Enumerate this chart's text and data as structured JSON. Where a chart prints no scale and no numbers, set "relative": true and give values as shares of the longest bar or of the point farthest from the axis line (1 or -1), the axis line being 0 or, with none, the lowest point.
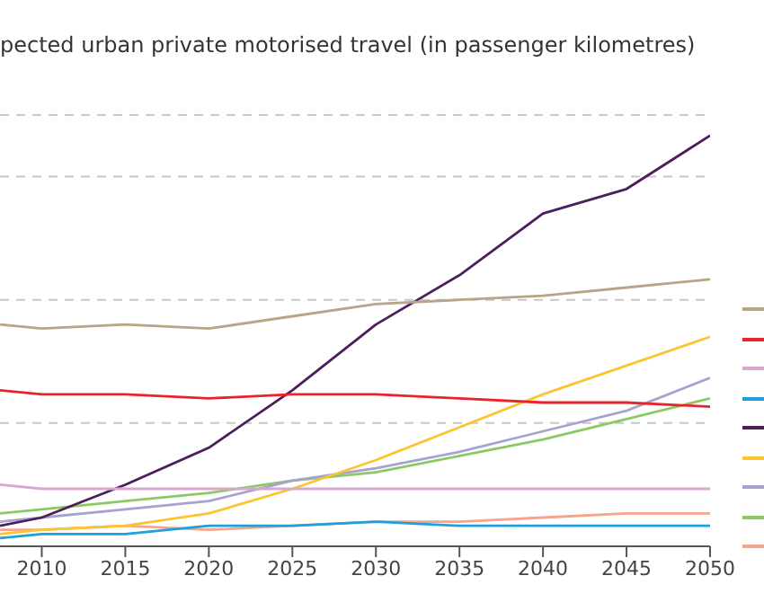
{
  "chart_data": {
    "type": "line",
    "title": "pected urban private motorised travel (in passenger kilometres)",
    "relative": true,
    "x": [
      2007.5,
      2010,
      2015,
      2020,
      2025,
      2030,
      2035,
      2040,
      2045,
      2050
    ],
    "xlim": [
      2007.5,
      2050
    ],
    "xticks": [
      2010,
      2015,
      2020,
      2025,
      2030,
      2035,
      2040,
      2045,
      2050
    ],
    "grid": "y",
    "marker": "none",
    "line_style": "solid",
    "series": [
      {
        "color": "#b9a487",
        "values": [
          0.54,
          0.53,
          0.54,
          0.53,
          0.56,
          0.59,
          0.6,
          0.61,
          0.63,
          0.65
        ]
      },
      {
        "color": "#e8232a",
        "values": [
          0.38,
          0.37,
          0.37,
          0.36,
          0.37,
          0.37,
          0.36,
          0.35,
          0.35,
          0.34
        ]
      },
      {
        "color": "#d9a6d0",
        "values": [
          0.15,
          0.14,
          0.14,
          0.14,
          0.14,
          0.14,
          0.14,
          0.14,
          0.14,
          0.14
        ]
      },
      {
        "color": "#1ea0dc",
        "values": [
          0.02,
          0.03,
          0.03,
          0.05,
          0.05,
          0.06,
          0.05,
          0.05,
          0.05,
          0.05
        ]
      },
      {
        "color": "#4b1f5c",
        "values": [
          0.05,
          0.07,
          0.15,
          0.24,
          0.38,
          0.54,
          0.66,
          0.81,
          0.87,
          1
        ]
      },
      {
        "color": "#fbc530",
        "values": [
          0.03,
          0.04,
          0.05,
          0.08,
          0.14,
          0.21,
          0.29,
          0.37,
          0.44,
          0.51
        ]
      },
      {
        "color": "#a7a3cf",
        "values": [
          0.06,
          0.07,
          0.09,
          0.11,
          0.16,
          0.19,
          0.23,
          0.28,
          0.33,
          0.41
        ]
      },
      {
        "color": "#8cc864",
        "values": [
          0.08,
          0.09,
          0.11,
          0.13,
          0.16,
          0.18,
          0.22,
          0.26,
          0.31,
          0.36
        ]
      },
      {
        "color": "#f6a48c",
        "values": [
          0.04,
          0.04,
          0.05,
          0.04,
          0.05,
          0.06,
          0.06,
          0.07,
          0.08,
          0.08
        ]
      }
    ]
  }
}
